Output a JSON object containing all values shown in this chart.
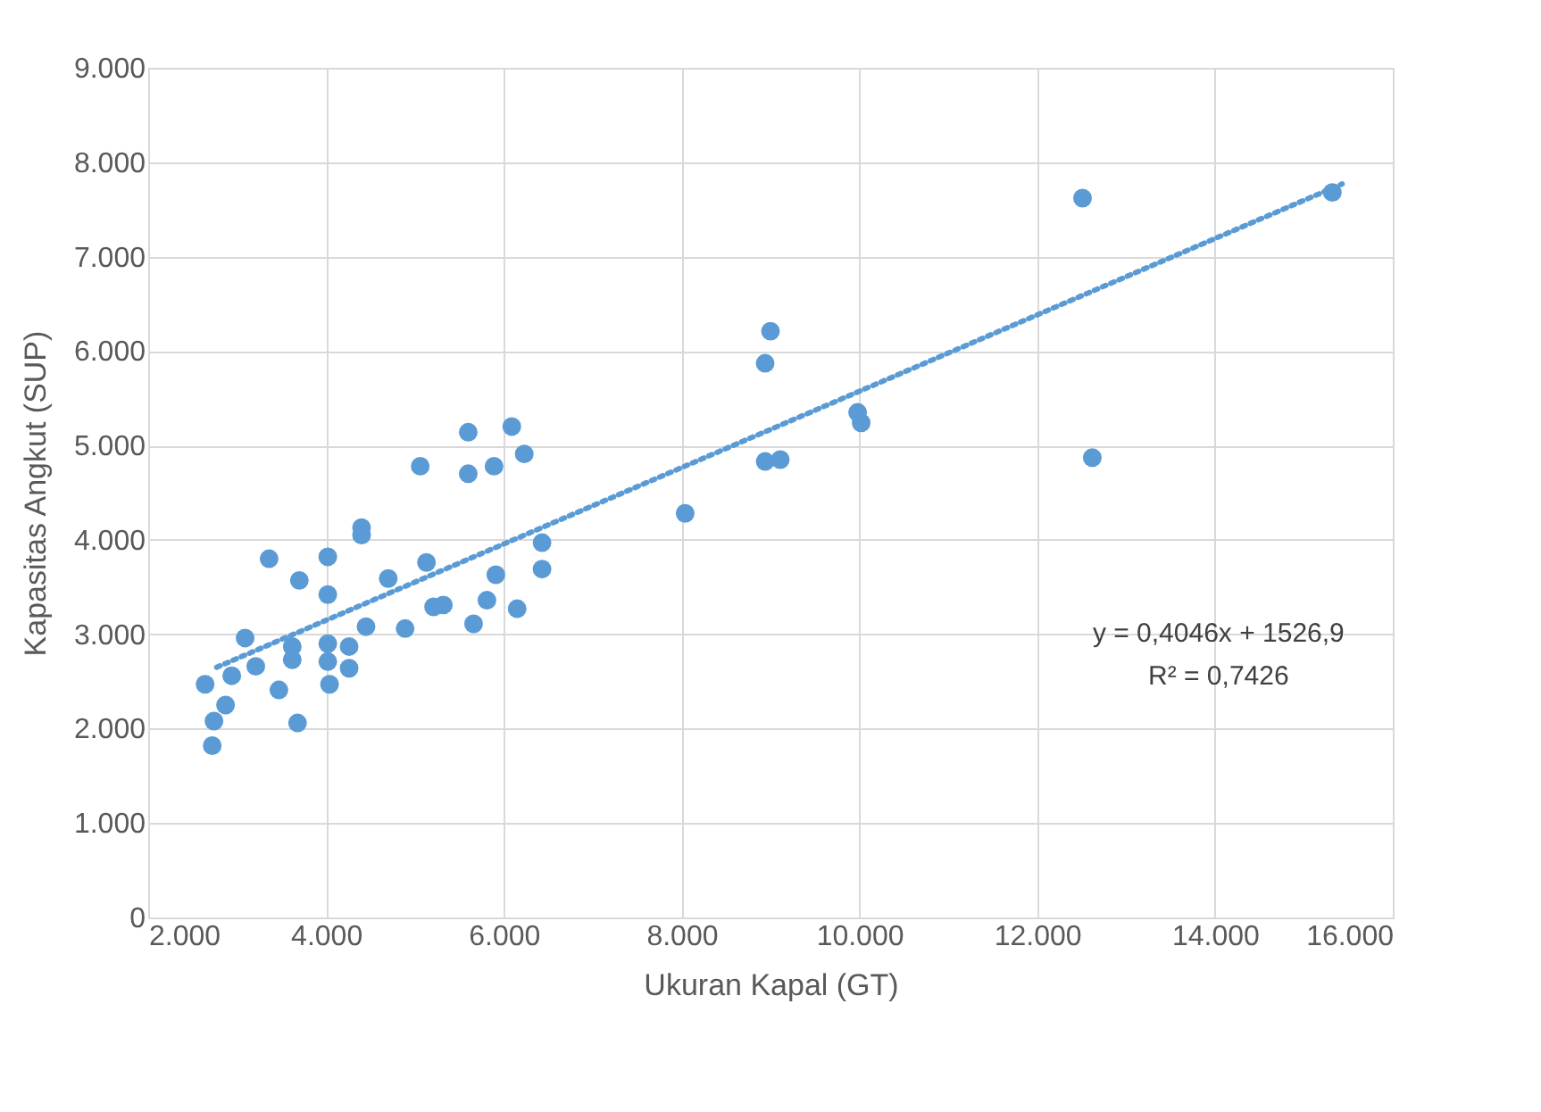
{
  "chart_data": {
    "type": "scatter",
    "xlabel": "Ukuran Kapal (GT)",
    "ylabel": "Kapasitas  Angkut (SUP)",
    "xlim": [
      2000,
      16000
    ],
    "ylim": [
      0,
      9000
    ],
    "xticks": [
      {
        "value": 2000,
        "label": "2.000"
      },
      {
        "value": 4000,
        "label": "4.000"
      },
      {
        "value": 6000,
        "label": "6.000"
      },
      {
        "value": 8000,
        "label": "8.000"
      },
      {
        "value": 10000,
        "label": "10.000"
      },
      {
        "value": 12000,
        "label": "12.000"
      },
      {
        "value": 14000,
        "label": "14.000"
      },
      {
        "value": 16000,
        "label": "16.000"
      }
    ],
    "yticks": [
      0,
      {
        "value": 1000,
        "label": "1.000"
      },
      {
        "value": 2000,
        "label": "2.000"
      },
      {
        "value": 3000,
        "label": "3.000"
      },
      {
        "value": 4000,
        "label": "4.000"
      },
      {
        "value": 5000,
        "label": "5.000"
      },
      {
        "value": 6000,
        "label": "6.000"
      },
      {
        "value": 7000,
        "label": "7.000"
      },
      {
        "value": 8000,
        "label": "8.000"
      },
      {
        "value": 9000,
        "label": "9.000"
      }
    ],
    "grid": true,
    "marker": "circle",
    "series": [
      {
        "color": "#5b9bd5",
        "x": [
          2640,
          2720,
          2740,
          2870,
          2940,
          3090,
          3210,
          3360,
          3470,
          3620,
          3620,
          3680,
          3700,
          4020,
          4020,
          4020,
          4020,
          4040,
          4260,
          4260,
          4400,
          4400,
          4450,
          4700,
          4890,
          5060,
          5130,
          5210,
          5320,
          5600,
          5600,
          5660,
          5810,
          5890,
          5910,
          6090,
          6150,
          6230,
          6430,
          6430,
          8040,
          8940,
          9000,
          8940,
          9110,
          9980,
          10020,
          12510,
          12620,
          15320
        ],
        "values": [
          2470,
          1820,
          2080,
          2250,
          2560,
          2960,
          2660,
          3800,
          2410,
          2870,
          2730,
          2060,
          3570,
          3820,
          3420,
          2900,
          2710,
          2470,
          2640,
          2870,
          4130,
          4050,
          3080,
          3590,
          3060,
          4780,
          3760,
          3290,
          3310,
          5140,
          4700,
          3110,
          3360,
          4780,
          3630,
          5200,
          3270,
          4910,
          3970,
          3690,
          4280,
          5870,
          6210,
          4830,
          4850,
          5350,
          5240,
          7620,
          4870,
          7680
        ]
      },
      {
        "type": "line",
        "color": "#5b9bd5",
        "line_style": "dotted",
        "marker": "none",
        "x": [
          2770,
          15430
        ],
        "values": [
          2650,
          7770
        ]
      }
    ],
    "annotations": [
      "y = 0,4046x + 1526,9",
      "R² = 0,7426"
    ]
  }
}
